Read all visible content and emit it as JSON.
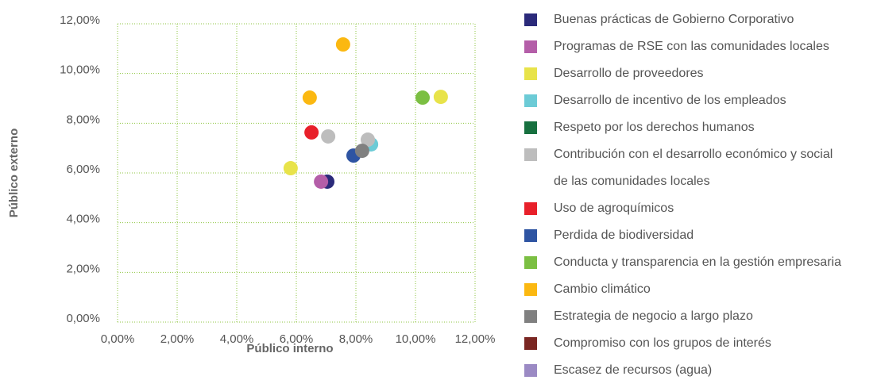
{
  "chart_data": {
    "type": "scatter",
    "x_label": "Público interno",
    "y_label": "Público externo",
    "xlim": [
      0,
      12
    ],
    "ylim": [
      0,
      12
    ],
    "xticks": [
      {
        "value": 0,
        "label": "0,00%"
      },
      {
        "value": 2,
        "label": "2,00%"
      },
      {
        "value": 4,
        "label": "4,00%"
      },
      {
        "value": 6,
        "label": "6,00%"
      },
      {
        "value": 8,
        "label": "8,00%"
      },
      {
        "value": 10,
        "label": "10,00%"
      },
      {
        "value": 12,
        "label": "12,00%"
      }
    ],
    "yticks": [
      {
        "value": 0,
        "label": "0,00%"
      },
      {
        "value": 2,
        "label": "2,00%"
      },
      {
        "value": 4,
        "label": "4,00%"
      },
      {
        "value": 6,
        "label": "6,00%"
      },
      {
        "value": 8,
        "label": "8,00%"
      },
      {
        "value": 10,
        "label": "10,00%"
      },
      {
        "value": 12,
        "label": "12,00%"
      }
    ],
    "grid": true,
    "legend": "right",
    "series": [
      {
        "name": "Buenas prácticas de Gobierno Corporativo",
        "color": "#2b2a7a",
        "x": [
          7.04
        ],
        "values": [
          5.65
        ]
      },
      {
        "name": "Programas de RSE con las comunidades locales",
        "color": "#b45ea8",
        "x": [
          6.83
        ],
        "values": [
          5.65
        ]
      },
      {
        "name": "Desarrollo de proveedores",
        "color": "#e8e34a",
        "x": [
          5.81,
          10.85
        ],
        "values": [
          6.19,
          9.06
        ]
      },
      {
        "name": "Desarrollo de incentivo de los empleados",
        "color": "#6ccbd6",
        "x": [
          8.51
        ],
        "values": [
          7.15
        ]
      },
      {
        "name": "Respeto por los derechos humanos",
        "color": "#17703f",
        "x": [],
        "values": []
      },
      {
        "name": "Contribución con el desarrollo económico y social de las comunidades locales",
        "color": "#bdbdbd",
        "x": [
          7.07,
          8.4
        ],
        "values": [
          7.47,
          7.34
        ]
      },
      {
        "name": "Uso de agroquímicos",
        "color": "#e8202a",
        "x": [
          6.51
        ],
        "values": [
          7.63
        ]
      },
      {
        "name": "Perdida de biodiversidad",
        "color": "#2e54a2",
        "x": [
          7.92
        ],
        "values": [
          6.7
        ]
      },
      {
        "name": "Conducta y transparencia en la gestión empresaria",
        "color": "#7bbf42",
        "x": [
          10.24
        ],
        "values": [
          9.03
        ]
      },
      {
        "name": "Cambio climático",
        "color": "#fbb811",
        "x": [
          7.57,
          6.45
        ],
        "values": [
          11.17,
          9.03
        ]
      },
      {
        "name": "Estrategia de negocio a largo plazo",
        "color": "#808080",
        "x": [
          8.21
        ],
        "values": [
          6.89
        ]
      },
      {
        "name": "Compromiso con los grupos de interés",
        "color": "#7a2622",
        "x": [],
        "values": []
      },
      {
        "name": "Escasez de recursos (agua)",
        "color": "#9b8ac4",
        "x": [],
        "values": []
      }
    ]
  }
}
